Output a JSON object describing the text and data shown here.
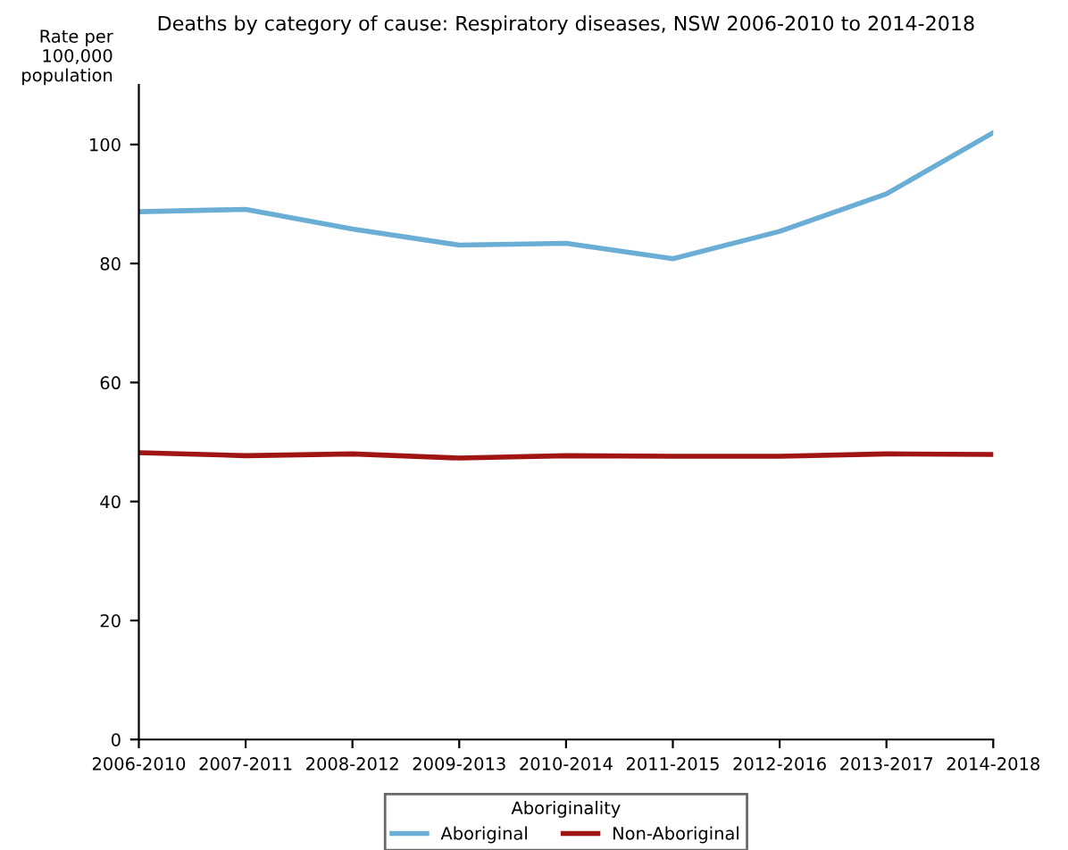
{
  "chart_data": {
    "type": "line",
    "title": "Deaths by category of cause: Respiratory diseases, NSW 2006-2010 to 2014-2018",
    "ylabel": "Rate per\n100,000\npopulation",
    "legend_title": "Aboriginality",
    "categories": [
      "2006-2010",
      "2007-2011",
      "2008-2012",
      "2009-2013",
      "2010-2014",
      "2011-2015",
      "2012-2016",
      "2013-2017",
      "2014-2018"
    ],
    "series": [
      {
        "name": "Aboriginal",
        "color": "#6aaed6",
        "values": [
          88.7,
          89.1,
          85.8,
          83.1,
          83.4,
          80.8,
          85.4,
          91.7,
          102.0
        ]
      },
      {
        "name": "Non-Aboriginal",
        "color": "#a01414",
        "values": [
          48.2,
          47.7,
          48.0,
          47.3,
          47.7,
          47.6,
          47.6,
          48.0,
          47.9
        ]
      }
    ],
    "ylim": [
      0,
      110
    ],
    "yticks": [
      0,
      20,
      40,
      60,
      80,
      100
    ],
    "grid": false,
    "legend": "bottom",
    "marker": "none",
    "line_style": "solid"
  }
}
